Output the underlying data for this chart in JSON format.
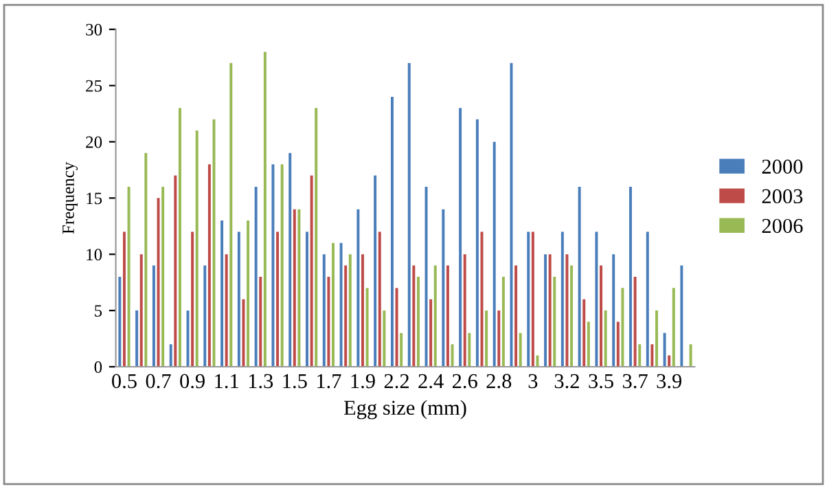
{
  "chart_data": {
    "type": "bar",
    "xlabel": "Egg size (mm)",
    "ylabel": "Frequency",
    "categories": [
      "0.5",
      null,
      "0.7",
      null,
      "0.9",
      null,
      "1.1",
      null,
      "1.3",
      null,
      "1.5",
      null,
      "1.7",
      null,
      "1.9",
      null,
      "2.2",
      null,
      "2.4",
      null,
      "2.6",
      null,
      "2.8",
      null,
      "3",
      null,
      "3.2",
      null,
      "3.5",
      null,
      "3.7",
      null,
      "3.9",
      null
    ],
    "series": [
      {
        "name": "2000",
        "color": "#4a7ebb",
        "values": [
          8,
          5,
          9,
          2,
          5,
          9,
          13,
          12,
          16,
          18,
          19,
          12,
          10,
          11,
          14,
          17,
          24,
          27,
          16,
          14,
          23,
          22,
          20,
          27,
          12,
          10,
          12,
          16,
          12,
          10,
          16,
          12,
          3,
          9
        ]
      },
      {
        "name": "2003",
        "color": "#be4b48",
        "values": [
          12,
          10,
          15,
          17,
          12,
          18,
          10,
          6,
          8,
          12,
          14,
          17,
          8,
          9,
          10,
          12,
          7,
          9,
          6,
          9,
          10,
          12,
          5,
          9,
          12,
          10,
          10,
          6,
          9,
          4,
          8,
          2,
          1,
          0
        ]
      },
      {
        "name": "2006",
        "color": "#98b954",
        "values": [
          16,
          19,
          16,
          23,
          21,
          22,
          27,
          13,
          28,
          18,
          14,
          23,
          11,
          10,
          7,
          5,
          3,
          8,
          9,
          2,
          3,
          5,
          8,
          3,
          1,
          8,
          9,
          4,
          5,
          7,
          2,
          5,
          7,
          2
        ]
      }
    ],
    "ylim": [
      0,
      30
    ],
    "yticks": [
      0,
      5,
      10,
      15,
      20,
      25,
      30
    ],
    "grid": false,
    "legend": "right"
  }
}
